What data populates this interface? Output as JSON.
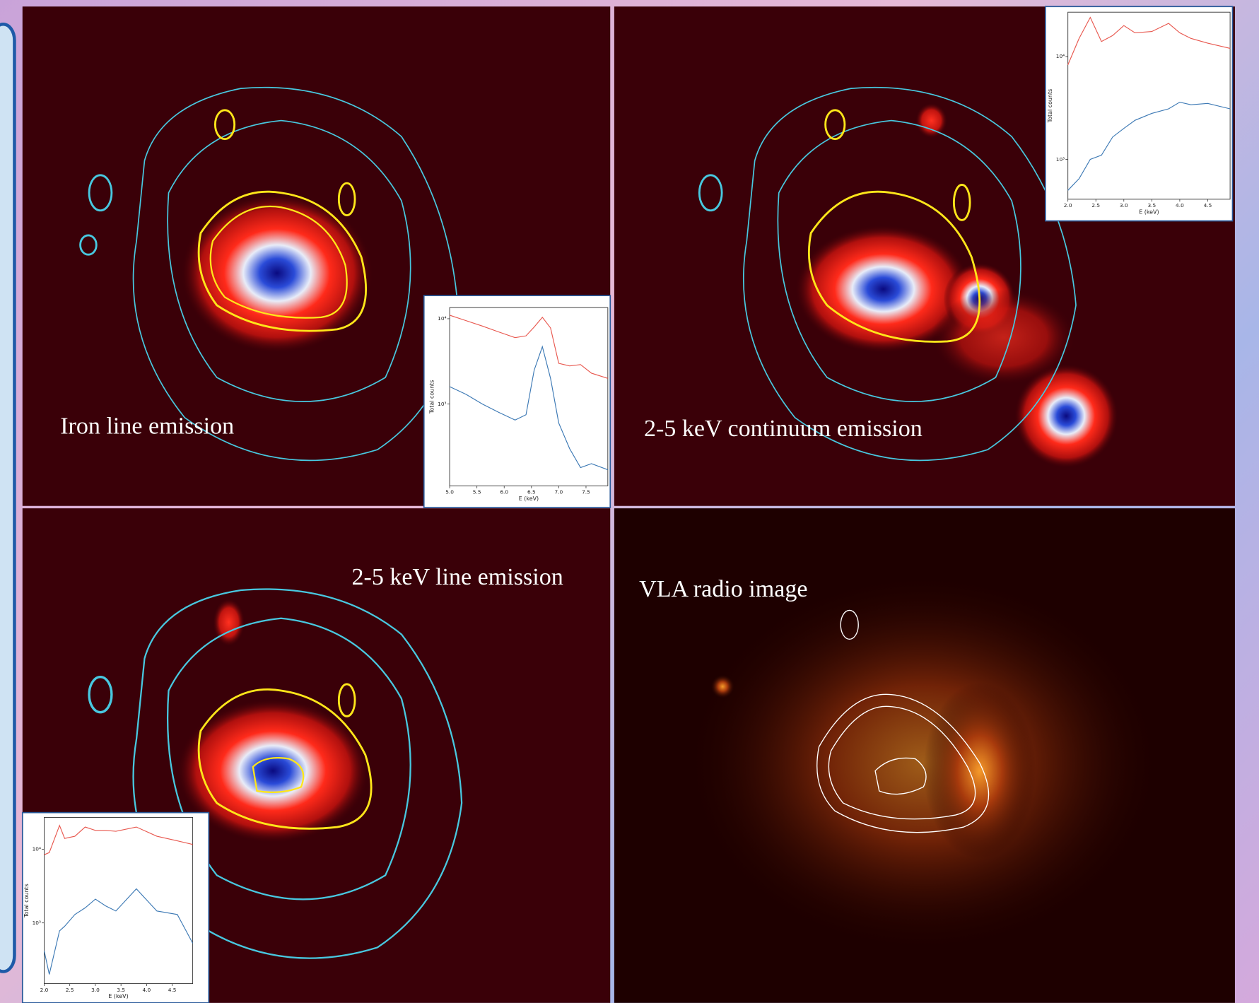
{
  "panels": [
    {
      "label": "Iron line emission"
    },
    {
      "label": "2-5 keV continuum emission"
    },
    {
      "label": "2-5 keV line emission"
    },
    {
      "label": "VLA radio image"
    }
  ],
  "chart_data": [
    {
      "type": "line",
      "x": [
        5.0,
        5.3,
        5.6,
        5.9,
        6.2,
        6.4,
        6.55,
        6.7,
        6.85,
        7.0,
        7.2,
        7.4,
        7.6,
        7.9
      ],
      "series": [
        {
          "color": "#e8574e",
          "values": [
            11000,
            9500,
            8200,
            7000,
            6000,
            6300,
            8000,
            10400,
            7800,
            3000,
            2800,
            2900,
            2300,
            2000
          ]
        },
        {
          "color": "#3b78b4",
          "values": [
            1600,
            1300,
            1000,
            800,
            650,
            750,
            2500,
            4700,
            2000,
            600,
            300,
            180,
            200,
            170
          ]
        }
      ],
      "xlim": [
        5.0,
        7.9
      ],
      "xticks": [
        {
          "value": 5,
          "label": "5.0"
        },
        {
          "value": 5.5,
          "label": "5.5"
        },
        {
          "value": 6,
          "label": "6.0"
        },
        {
          "value": 6.5,
          "label": "6.5"
        },
        {
          "value": 7,
          "label": "7.0"
        },
        {
          "value": 7.5,
          "label": "7.5"
        }
      ],
      "ylim": [
        110,
        13500
      ],
      "yticks": [
        {
          "value": 1000,
          "label": "10³"
        },
        {
          "value": 10000,
          "label": "10⁴"
        }
      ],
      "yscale": "log",
      "xlabel": "E (keV)",
      "ylabel": "Total counts"
    },
    {
      "type": "line",
      "x": [
        2.0,
        2.2,
        2.4,
        2.6,
        2.8,
        3.0,
        3.2,
        3.5,
        3.8,
        4.0,
        4.2,
        4.5,
        4.9
      ],
      "series": [
        {
          "color": "#e8574e",
          "values": [
            8300,
            15000,
            24000,
            14000,
            16000,
            20000,
            17000,
            17500,
            21000,
            17000,
            15000,
            13500,
            12000
          ]
        },
        {
          "color": "#3b78b4",
          "values": [
            500,
            650,
            1000,
            1100,
            1650,
            2000,
            2400,
            2800,
            3100,
            3600,
            3400,
            3500,
            3100
          ]
        }
      ],
      "xlim": [
        2.0,
        4.9
      ],
      "xticks": [
        {
          "value": 2,
          "label": "2.0"
        },
        2.5,
        {
          "value": 3,
          "label": "3.0"
        },
        3.5,
        {
          "value": 4,
          "label": "4.0"
        },
        4.5
      ],
      "ylim": [
        410,
        27000
      ],
      "yticks": [
        {
          "value": 1000,
          "label": "10³"
        },
        {
          "value": 10000,
          "label": "10⁴"
        }
      ],
      "yscale": "log",
      "xlabel": "E (keV)",
      "ylabel": "Total counts"
    },
    {
      "type": "line",
      "x": [
        2.0,
        2.1,
        2.3,
        2.4,
        2.6,
        2.8,
        3.0,
        3.2,
        3.4,
        3.8,
        4.2,
        4.6,
        4.9
      ],
      "series": [
        {
          "color": "#e8574e",
          "values": [
            8400,
            9000,
            21000,
            14000,
            15000,
            20000,
            18000,
            18000,
            17500,
            20000,
            15000,
            13000,
            11600
          ]
        },
        {
          "color": "#3b78b4",
          "values": [
            420,
            200,
            780,
            900,
            1300,
            1600,
            2100,
            1700,
            1450,
            2900,
            1450,
            1300,
            530
          ]
        }
      ],
      "xlim": [
        2.0,
        4.9
      ],
      "xticks": [
        {
          "value": 2,
          "label": "2.0"
        },
        2.5,
        {
          "value": 3,
          "label": "3.0"
        },
        3.5,
        {
          "value": 4,
          "label": "4.0"
        },
        4.5
      ],
      "ylim": [
        150,
        27000
      ],
      "yticks": [
        {
          "value": 1000,
          "label": "10³"
        },
        {
          "value": 10000,
          "label": "10⁴"
        }
      ],
      "yscale": "log",
      "xlabel": "E (keV)",
      "ylabel": "Total counts"
    }
  ]
}
